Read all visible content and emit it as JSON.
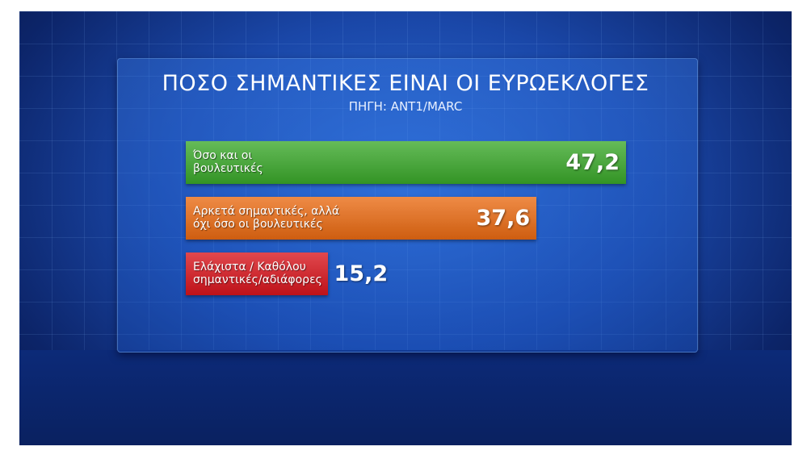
{
  "chart_data": {
    "type": "bar",
    "orientation": "horizontal",
    "title": "ΠΟΣΟ ΣΗΜΑΝΤΙΚΕΣ ΕΙΝΑΙ ΟΙ ΕΥΡΩΕΚΛΟΓΕΣ",
    "subtitle": "ΠΗΓΗ: ANT1/MARC",
    "categories": [
      "Όσο και οι\nβουλευτικές",
      "Αρκετά σημαντικές, αλλά\nόχι όσο οι βουλευτικές",
      "Ελάχιστα / Καθόλου\nσημαντικές/αδιάφορες"
    ],
    "values": [
      47.2,
      37.6,
      15.2
    ],
    "value_labels": [
      "47,2",
      "37,6",
      "15,2"
    ],
    "colors": [
      "#3aa82a",
      "#ea6a12",
      "#d8141c"
    ]
  }
}
